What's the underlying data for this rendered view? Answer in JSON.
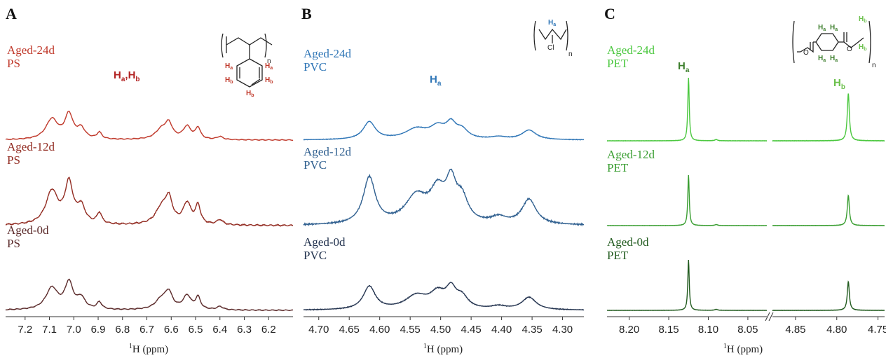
{
  "chart_data": [
    {
      "type": "line",
      "panel": "A",
      "polymer": "PS",
      "peak_label": {
        "main": [
          "H",
          "H"
        ],
        "subs": [
          "a",
          "b"
        ]
      },
      "xlabel": "1H (ppm)",
      "xlim": [
        7.28,
        6.1
      ],
      "x_ticks": [
        "7.2",
        "7.1",
        "7.0",
        "6.9",
        "6.8",
        "6.7",
        "6.6",
        "6.5",
        "6.4",
        "6.3",
        "6.2"
      ],
      "tick_values": [
        7.2,
        7.1,
        7.0,
        6.9,
        6.8,
        6.7,
        6.6,
        6.5,
        6.4,
        6.3,
        6.2
      ],
      "series": [
        {
          "label_line1": "Aged-24d",
          "label_line2": "PS",
          "color": "#c0392b",
          "scale": 0.82,
          "peaks": [
            [
              7.09,
              0.4,
              0.03
            ],
            [
              7.02,
              0.48,
              0.02
            ],
            [
              6.97,
              0.2,
              0.02
            ],
            [
              6.895,
              0.13,
              0.012
            ],
            [
              6.64,
              0.19,
              0.03
            ],
            [
              6.61,
              0.28,
              0.018
            ],
            [
              6.535,
              0.25,
              0.02
            ],
            [
              6.49,
              0.22,
              0.012
            ],
            [
              6.4,
              0.06,
              0.015
            ]
          ]
        },
        {
          "label_line1": "Aged-12d",
          "label_line2": "PS",
          "color": "#922b21",
          "scale": 1.35,
          "peaks": [
            [
              7.09,
              0.4,
              0.03
            ],
            [
              7.02,
              0.48,
              0.02
            ],
            [
              6.97,
              0.2,
              0.02
            ],
            [
              6.895,
              0.13,
              0.012
            ],
            [
              6.64,
              0.19,
              0.03
            ],
            [
              6.61,
              0.28,
              0.018
            ],
            [
              6.535,
              0.25,
              0.02
            ],
            [
              6.49,
              0.22,
              0.012
            ],
            [
              6.4,
              0.06,
              0.015
            ]
          ]
        },
        {
          "label_line1": "Aged-0d",
          "label_line2": "PS",
          "color": "#5b2a2a",
          "scale": 0.88,
          "peaks": [
            [
              7.09,
              0.4,
              0.03
            ],
            [
              7.02,
              0.48,
              0.02
            ],
            [
              6.97,
              0.2,
              0.02
            ],
            [
              6.895,
              0.13,
              0.012
            ],
            [
              6.64,
              0.19,
              0.03
            ],
            [
              6.61,
              0.28,
              0.018
            ],
            [
              6.535,
              0.25,
              0.02
            ],
            [
              6.49,
              0.22,
              0.012
            ],
            [
              6.4,
              0.06,
              0.015
            ]
          ]
        }
      ]
    },
    {
      "type": "line",
      "panel": "B",
      "polymer": "PVC",
      "peak_label": {
        "main": [
          "H"
        ],
        "subs": [
          "a"
        ]
      },
      "xlabel": "1H (ppm)",
      "xlim": [
        4.725,
        4.265
      ],
      "x_ticks": [
        "4.70",
        "4.65",
        "4.60",
        "4.55",
        "4.50",
        "4.45",
        "4.40",
        "4.35",
        "4.30"
      ],
      "tick_values": [
        4.7,
        4.65,
        4.6,
        4.55,
        4.5,
        4.45,
        4.4,
        4.35,
        4.3
      ],
      "series": [
        {
          "label_line1": "Aged-24d",
          "label_line2": "PVC",
          "color": "#2e75b6",
          "scale": 0.55,
          "peaks": [
            [
              4.617,
              0.52,
              0.012
            ],
            [
              4.54,
              0.3,
              0.022
            ],
            [
              4.505,
              0.33,
              0.015
            ],
            [
              4.483,
              0.4,
              0.01
            ],
            [
              4.465,
              0.25,
              0.012
            ],
            [
              4.405,
              0.07,
              0.015
            ],
            [
              4.355,
              0.28,
              0.014
            ]
          ]
        },
        {
          "label_line1": "Aged-12d",
          "label_line2": "PVC",
          "color": "#2f5f8f",
          "scale": 1.45,
          "peaks": [
            [
              4.617,
              0.52,
              0.012
            ],
            [
              4.54,
              0.3,
              0.022
            ],
            [
              4.505,
              0.33,
              0.015
            ],
            [
              4.483,
              0.4,
              0.01
            ],
            [
              4.465,
              0.25,
              0.012
            ],
            [
              4.405,
              0.07,
              0.015
            ],
            [
              4.355,
              0.28,
              0.014
            ]
          ]
        },
        {
          "label_line1": "Aged-0d",
          "label_line2": "PVC",
          "color": "#23334f",
          "scale": 0.72,
          "peaks": [
            [
              4.617,
              0.52,
              0.012
            ],
            [
              4.54,
              0.3,
              0.022
            ],
            [
              4.505,
              0.33,
              0.015
            ],
            [
              4.483,
              0.4,
              0.01
            ],
            [
              4.465,
              0.25,
              0.012
            ],
            [
              4.405,
              0.07,
              0.015
            ],
            [
              4.355,
              0.28,
              0.014
            ]
          ]
        }
      ]
    },
    {
      "type": "line",
      "panel": "C",
      "polymer": "PET",
      "peak_labels": [
        {
          "main": [
            "H"
          ],
          "subs": [
            "a"
          ],
          "color": "#3d7f2d"
        },
        {
          "main": [
            "H"
          ],
          "subs": [
            "b"
          ],
          "color": "#6bc04b"
        }
      ],
      "xlabel": "1H (ppm)",
      "xlim_left": [
        8.228,
        8.026
      ],
      "xlim_right": [
        4.878,
        4.742
      ],
      "x_ticks_left": [
        "8.20",
        "8.15",
        "8.10",
        "8.05"
      ],
      "tick_values_left": [
        8.2,
        8.15,
        8.1,
        8.05
      ],
      "x_ticks_right": [
        "4.85",
        "4.80",
        "4.75"
      ],
      "tick_values_right": [
        4.85,
        4.8,
        4.75
      ],
      "series": [
        {
          "label_line1": "Aged-24d",
          "label_line2": "PET",
          "color": "#4cc840",
          "scale": 1.0,
          "left_peaks": [
            [
              8.125,
              1.0,
              0.0011
            ],
            [
              8.09,
              0.02,
              0.002
            ]
          ],
          "right_peaks": [
            [
              4.786,
              0.75,
              0.0015
            ]
          ]
        },
        {
          "label_line1": "Aged-12d",
          "label_line2": "PET",
          "color": "#3a9e32",
          "scale": 0.8,
          "left_peaks": [
            [
              8.125,
              1.0,
              0.0011
            ],
            [
              8.09,
              0.02,
              0.002
            ]
          ],
          "right_peaks": [
            [
              4.786,
              0.6,
              0.0015
            ]
          ]
        },
        {
          "label_line1": "Aged-0d",
          "label_line2": "PET",
          "color": "#235c20",
          "scale": 0.8,
          "left_peaks": [
            [
              8.125,
              1.0,
              0.0011
            ],
            [
              8.09,
              0.02,
              0.002
            ]
          ],
          "right_peaks": [
            [
              4.786,
              0.57,
              0.0015
            ]
          ]
        }
      ]
    }
  ],
  "structures": {
    "ps": {
      "n": "n",
      "labels": [
        "H",
        "H",
        "H",
        "H",
        "H"
      ],
      "subs": [
        "a",
        "a",
        "b",
        "b",
        "b"
      ],
      "color": "#c0392b"
    },
    "pvc": {
      "n": "n",
      "cl": "Cl",
      "h": "H",
      "h_sub": "a",
      "color": "#2e75b6"
    },
    "pet": {
      "n": "n",
      "o": "O",
      "ha": "H",
      "hb": "H",
      "sub_a": "a",
      "sub_b": "b",
      "color_a": "#3d7f2d",
      "color_b": "#6bc04b"
    }
  }
}
